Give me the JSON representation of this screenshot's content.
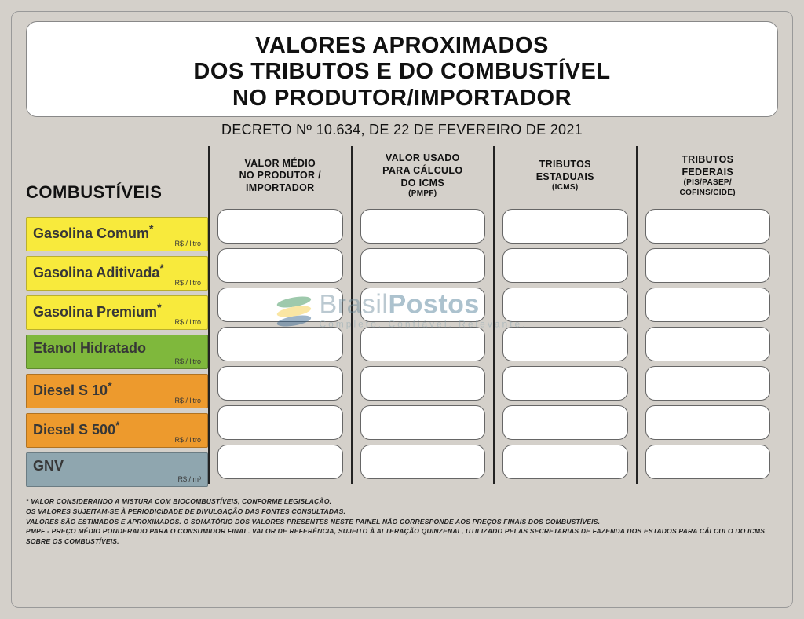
{
  "header": {
    "title_line1": "VALORES APROXIMADOS",
    "title_line2": "DOS TRIBUTOS E DO COMBUSTÍVEL",
    "title_line3": "NO PRODUTOR/IMPORTADOR",
    "subtitle": "DECRETO Nº 10.634, DE 22 DE FEVEREIRO DE 2021"
  },
  "labels_header": "COMBUSTÍVEIS",
  "columns": [
    {
      "line1": "VALOR MÉDIO",
      "line2": "NO PRODUTOR /",
      "line3": "IMPORTADOR",
      "sub": ""
    },
    {
      "line1": "VALOR USADO",
      "line2": "PARA CÁLCULO",
      "line3": "DO ICMS",
      "sub": "(PMPF)"
    },
    {
      "line1": "TRIBUTOS",
      "line2": "ESTADUAIS",
      "line3": "",
      "sub": "(ICMS)"
    },
    {
      "line1": "TRIBUTOS",
      "line2": "FEDERAIS",
      "line3": "",
      "sub": "(PIS/PASEP/\nCOFINS/CIDE)"
    }
  ],
  "fuels": [
    {
      "name": "Gasolina Comum",
      "asterisk": "*",
      "unit": "R$ / litro",
      "color": "#f8ea3c"
    },
    {
      "name": "Gasolina Aditivada",
      "asterisk": "*",
      "unit": "R$ / litro",
      "color": "#f8ea3c"
    },
    {
      "name": "Gasolina Premium",
      "asterisk": "*",
      "unit": "R$ / litro",
      "color": "#f8ea3c"
    },
    {
      "name": "Etanol Hidratado",
      "asterisk": "",
      "unit": "R$ / litro",
      "color": "#7fb83c"
    },
    {
      "name": "Diesel S 10",
      "asterisk": "*",
      "unit": "R$ / litro",
      "color": "#ed9a2d"
    },
    {
      "name": "Diesel S 500",
      "asterisk": "*",
      "unit": "R$ / litro",
      "color": "#ed9a2d"
    },
    {
      "name": "GNV",
      "asterisk": "",
      "unit": "R$ / m³",
      "color": "#8fa6af"
    }
  ],
  "footnotes": [
    "* VALOR CONSIDERANDO A MISTURA COM BIOCOMBUSTÍVEIS, CONFORME LEGISLAÇÃO.",
    "OS VALORES SUJEITAM-SE À PERIODICIDADE DE DIVULGAÇÃO DAS FONTES CONSULTADAS.",
    "VALORES SÃO ESTIMADOS E APROXIMADOS. O SOMATÓRIO DOS VALORES PRESENTES NESTE PAINEL NÃO CORRESPONDE AOS PREÇOS FINAIS DOS COMBUSTÍVEIS.",
    "PMPF - PREÇO MÉDIO PONDERADO PARA O CONSUMIDOR FINAL. VALOR DE REFERÊNCIA, SUJEITO À ALTERAÇÃO QUINZENAL, UTILIZADO PELAS SECRETARIAS DE FAZENDA DOS ESTADOS PARA CÁLCULO DO ICMS SOBRE OS COMBUSTÍVEIS."
  ],
  "watermark": {
    "brand1": "Brasil",
    "brand2": "Postos",
    "tagline": "Completo. Confiável. Relevante."
  },
  "colors": {
    "background": "#d4d0ca",
    "text": "#111111",
    "cell_bg": "#ffffff",
    "cell_border": "#666666",
    "divider": "#222222"
  }
}
